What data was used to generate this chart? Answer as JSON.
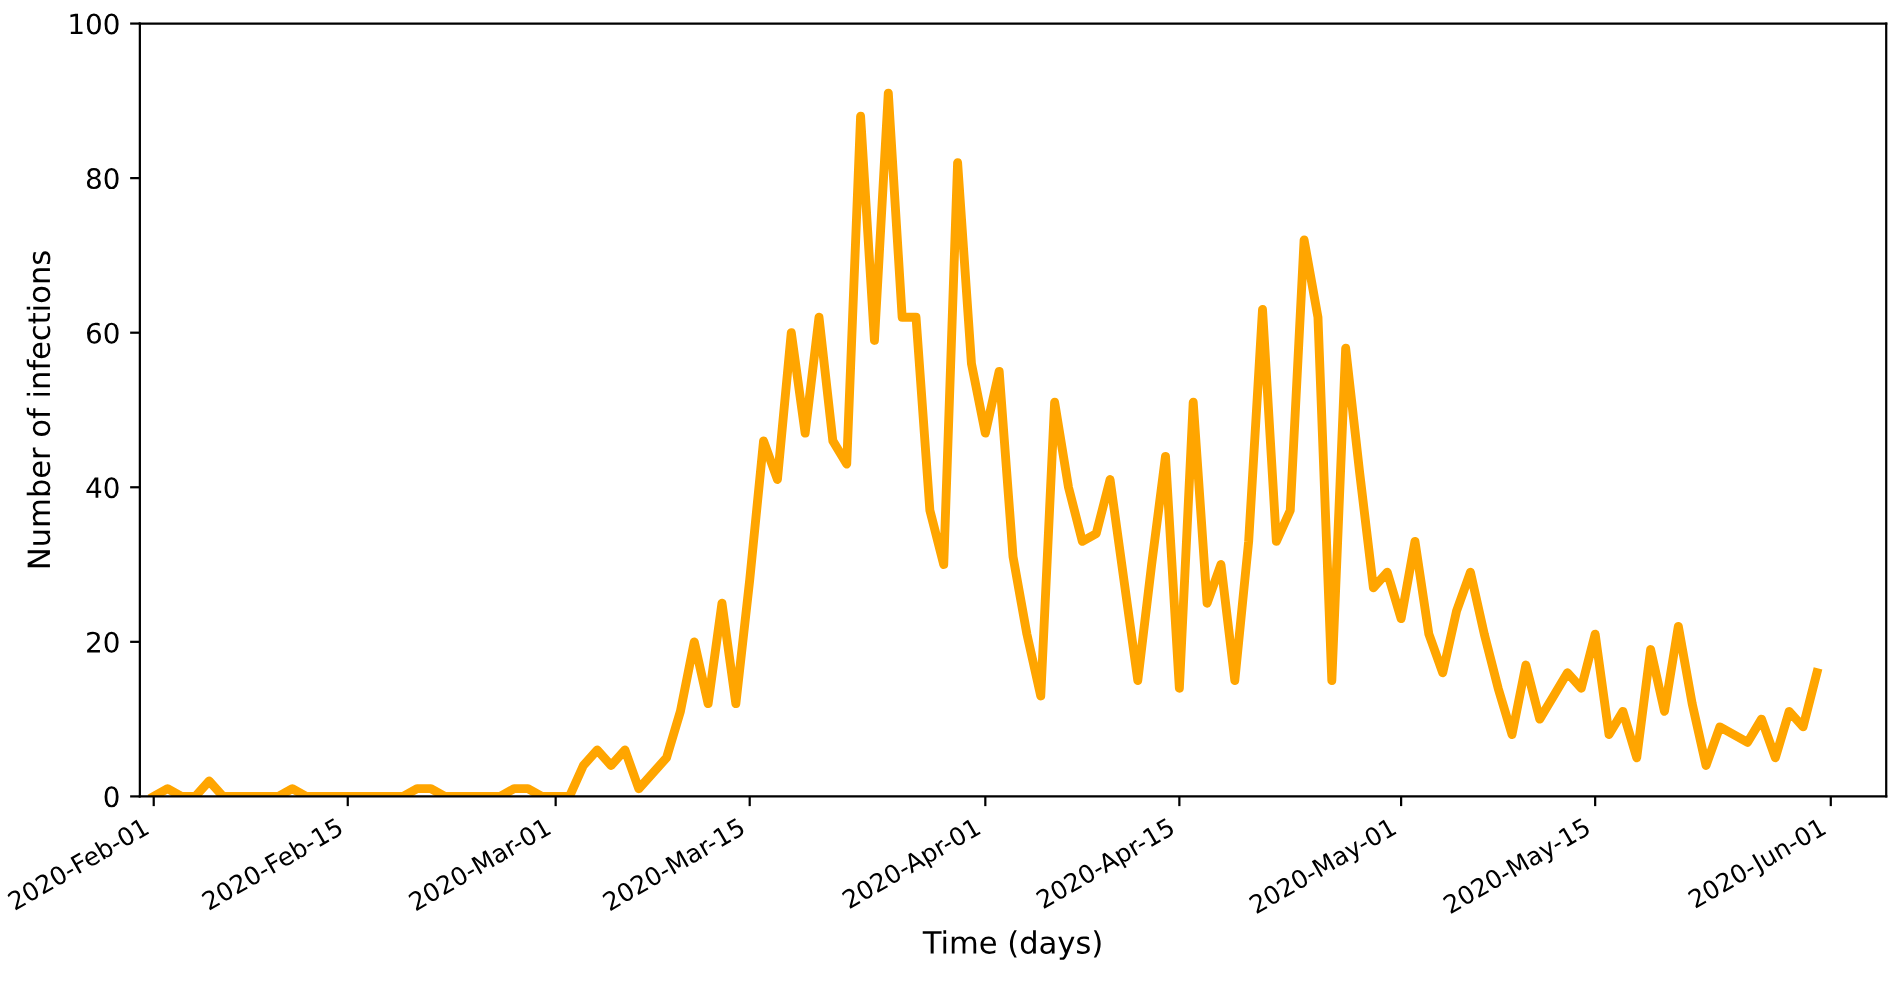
{
  "chart_data": {
    "type": "line",
    "xlabel": "Time (days)",
    "ylabel": "Number of infections",
    "x": [
      "2020-02-01",
      "2020-02-02",
      "2020-02-03",
      "2020-02-04",
      "2020-02-05",
      "2020-02-06",
      "2020-02-07",
      "2020-02-08",
      "2020-02-09",
      "2020-02-10",
      "2020-02-11",
      "2020-02-12",
      "2020-02-13",
      "2020-02-14",
      "2020-02-15",
      "2020-02-16",
      "2020-02-17",
      "2020-02-18",
      "2020-02-19",
      "2020-02-20",
      "2020-02-21",
      "2020-02-22",
      "2020-02-23",
      "2020-02-24",
      "2020-02-25",
      "2020-02-26",
      "2020-02-27",
      "2020-02-28",
      "2020-02-29",
      "2020-03-01",
      "2020-03-02",
      "2020-03-03",
      "2020-03-04",
      "2020-03-05",
      "2020-03-06",
      "2020-03-07",
      "2020-03-08",
      "2020-03-09",
      "2020-03-10",
      "2020-03-11",
      "2020-03-12",
      "2020-03-13",
      "2020-03-14",
      "2020-03-15",
      "2020-03-16",
      "2020-03-17",
      "2020-03-18",
      "2020-03-19",
      "2020-03-20",
      "2020-03-21",
      "2020-03-22",
      "2020-03-23",
      "2020-03-24",
      "2020-03-25",
      "2020-03-26",
      "2020-03-27",
      "2020-03-28",
      "2020-03-29",
      "2020-03-30",
      "2020-03-31",
      "2020-04-01",
      "2020-04-02",
      "2020-04-03",
      "2020-04-04",
      "2020-04-05",
      "2020-04-06",
      "2020-04-07",
      "2020-04-08",
      "2020-04-09",
      "2020-04-10",
      "2020-04-11",
      "2020-04-12",
      "2020-04-13",
      "2020-04-14",
      "2020-04-15",
      "2020-04-16",
      "2020-04-17",
      "2020-04-18",
      "2020-04-19",
      "2020-04-20",
      "2020-04-21",
      "2020-04-22",
      "2020-04-23",
      "2020-04-24",
      "2020-04-25",
      "2020-04-26",
      "2020-04-27",
      "2020-04-28",
      "2020-04-29",
      "2020-04-30",
      "2020-05-01",
      "2020-05-02",
      "2020-05-03",
      "2020-05-04",
      "2020-05-05",
      "2020-05-06",
      "2020-05-07",
      "2020-05-08",
      "2020-05-09",
      "2020-05-10",
      "2020-05-11",
      "2020-05-12",
      "2020-05-13",
      "2020-05-14",
      "2020-05-15",
      "2020-05-16",
      "2020-05-17",
      "2020-05-18",
      "2020-05-19",
      "2020-05-20",
      "2020-05-21",
      "2020-05-22",
      "2020-05-23",
      "2020-05-24",
      "2020-05-25",
      "2020-05-26",
      "2020-05-27",
      "2020-05-28",
      "2020-05-29",
      "2020-05-30",
      "2020-05-31"
    ],
    "series": [
      {
        "color": "#ffa500",
        "values": [
          0,
          1,
          0,
          0,
          2,
          0,
          0,
          0,
          0,
          0,
          1,
          0,
          0,
          0,
          0,
          0,
          0,
          0,
          0,
          1,
          1,
          0,
          0,
          0,
          0,
          0,
          1,
          1,
          0,
          0,
          0,
          4,
          6,
          4,
          6,
          1,
          3,
          5,
          11,
          20,
          12,
          25,
          12,
          28,
          46,
          41,
          60,
          47,
          62,
          46,
          43,
          88,
          59,
          91,
          62,
          62,
          37,
          30,
          82,
          56,
          47,
          55,
          31,
          21,
          13,
          51,
          40,
          33,
          34,
          41,
          28,
          15,
          30,
          44,
          14,
          51,
          25,
          30,
          15,
          33,
          63,
          33,
          37,
          72,
          62,
          15,
          58,
          42,
          27,
          29,
          23,
          33,
          21,
          16,
          24,
          29,
          21,
          14,
          8,
          17,
          10,
          13,
          16,
          14,
          21,
          8,
          11,
          5,
          19,
          11,
          22,
          12,
          4,
          9,
          8,
          7,
          10,
          5,
          11,
          9,
          16
        ]
      }
    ],
    "xlim": [
      "2020-01-31",
      "2020-06-05"
    ],
    "ylim": [
      0,
      100
    ],
    "yticks": [
      0,
      20,
      40,
      60,
      80,
      100
    ],
    "xticks": [
      {
        "value": "2020-02-01",
        "label": "2020-Feb-01"
      },
      {
        "value": "2020-02-15",
        "label": "2020-Feb-15"
      },
      {
        "value": "2020-03-01",
        "label": "2020-Mar-01"
      },
      {
        "value": "2020-03-15",
        "label": "2020-Mar-15"
      },
      {
        "value": "2020-04-01",
        "label": "2020-Apr-01"
      },
      {
        "value": "2020-04-15",
        "label": "2020-Apr-15"
      },
      {
        "value": "2020-05-01",
        "label": "2020-May-01"
      },
      {
        "value": "2020-05-15",
        "label": "2020-May-15"
      },
      {
        "value": "2020-06-01",
        "label": "2020-Jun-01"
      }
    ],
    "grid": false,
    "marker": "none",
    "line_style": "solid"
  }
}
